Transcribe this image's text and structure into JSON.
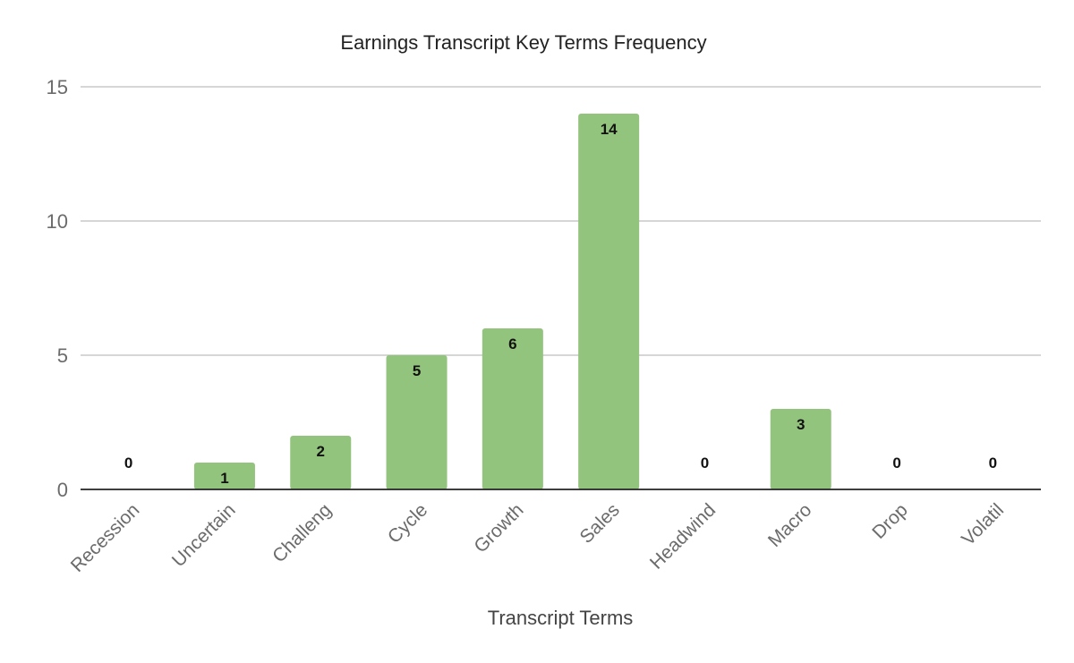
{
  "chart_data": {
    "type": "bar",
    "title": "Earnings Transcript Key Terms Frequency",
    "xlabel": "Transcript Terms",
    "ylabel": "",
    "categories": [
      "Recession",
      "Uncertain",
      "Challeng",
      "Cycle",
      "Growth",
      "Sales",
      "Headwind",
      "Macro",
      "Drop",
      "Volatil"
    ],
    "values": [
      0,
      1,
      2,
      5,
      6,
      14,
      0,
      3,
      0,
      0
    ],
    "data_labels": [
      "0",
      "1",
      "2",
      "5",
      "6",
      "14",
      "0",
      "3",
      "0",
      "0"
    ],
    "ylim": [
      0,
      15
    ],
    "yticks": [
      "0",
      "5",
      "10",
      "15"
    ],
    "grid": true,
    "legend": "none",
    "bar_color": "#93c47d"
  }
}
